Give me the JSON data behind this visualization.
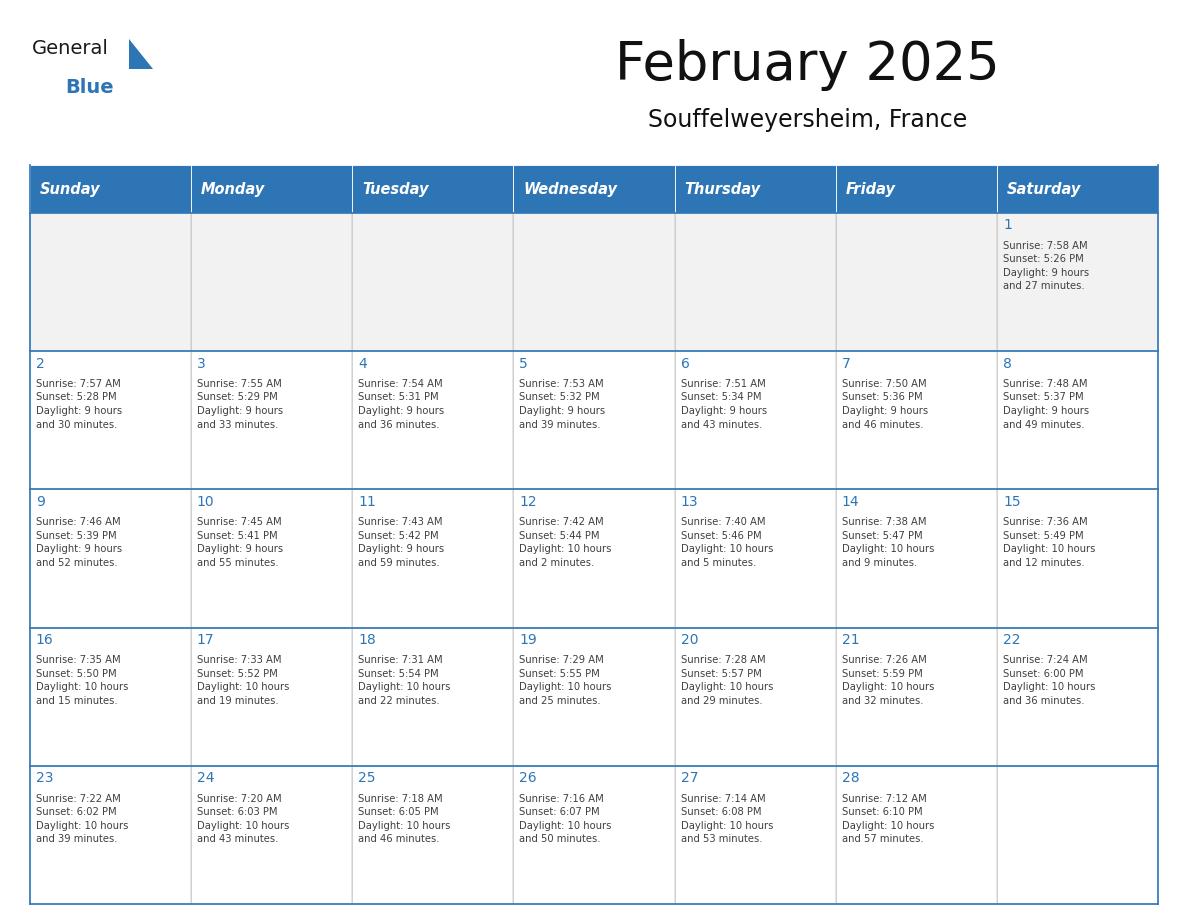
{
  "title": "February 2025",
  "subtitle": "Souffelweyersheim, France",
  "header_bg": "#2E75B6",
  "header_text_color": "#FFFFFF",
  "cell_bg_light": "#F2F2F2",
  "cell_bg_white": "#FFFFFF",
  "cell_border_color": "#2E75B6",
  "day_number_color": "#2E75B6",
  "cell_text_color": "#404040",
  "days_of_week": [
    "Sunday",
    "Monday",
    "Tuesday",
    "Wednesday",
    "Thursday",
    "Friday",
    "Saturday"
  ],
  "weeks": [
    [
      {
        "day": "",
        "info": ""
      },
      {
        "day": "",
        "info": ""
      },
      {
        "day": "",
        "info": ""
      },
      {
        "day": "",
        "info": ""
      },
      {
        "day": "",
        "info": ""
      },
      {
        "day": "",
        "info": ""
      },
      {
        "day": "1",
        "info": "Sunrise: 7:58 AM\nSunset: 5:26 PM\nDaylight: 9 hours\nand 27 minutes."
      }
    ],
    [
      {
        "day": "2",
        "info": "Sunrise: 7:57 AM\nSunset: 5:28 PM\nDaylight: 9 hours\nand 30 minutes."
      },
      {
        "day": "3",
        "info": "Sunrise: 7:55 AM\nSunset: 5:29 PM\nDaylight: 9 hours\nand 33 minutes."
      },
      {
        "day": "4",
        "info": "Sunrise: 7:54 AM\nSunset: 5:31 PM\nDaylight: 9 hours\nand 36 minutes."
      },
      {
        "day": "5",
        "info": "Sunrise: 7:53 AM\nSunset: 5:32 PM\nDaylight: 9 hours\nand 39 minutes."
      },
      {
        "day": "6",
        "info": "Sunrise: 7:51 AM\nSunset: 5:34 PM\nDaylight: 9 hours\nand 43 minutes."
      },
      {
        "day": "7",
        "info": "Sunrise: 7:50 AM\nSunset: 5:36 PM\nDaylight: 9 hours\nand 46 minutes."
      },
      {
        "day": "8",
        "info": "Sunrise: 7:48 AM\nSunset: 5:37 PM\nDaylight: 9 hours\nand 49 minutes."
      }
    ],
    [
      {
        "day": "9",
        "info": "Sunrise: 7:46 AM\nSunset: 5:39 PM\nDaylight: 9 hours\nand 52 minutes."
      },
      {
        "day": "10",
        "info": "Sunrise: 7:45 AM\nSunset: 5:41 PM\nDaylight: 9 hours\nand 55 minutes."
      },
      {
        "day": "11",
        "info": "Sunrise: 7:43 AM\nSunset: 5:42 PM\nDaylight: 9 hours\nand 59 minutes."
      },
      {
        "day": "12",
        "info": "Sunrise: 7:42 AM\nSunset: 5:44 PM\nDaylight: 10 hours\nand 2 minutes."
      },
      {
        "day": "13",
        "info": "Sunrise: 7:40 AM\nSunset: 5:46 PM\nDaylight: 10 hours\nand 5 minutes."
      },
      {
        "day": "14",
        "info": "Sunrise: 7:38 AM\nSunset: 5:47 PM\nDaylight: 10 hours\nand 9 minutes."
      },
      {
        "day": "15",
        "info": "Sunrise: 7:36 AM\nSunset: 5:49 PM\nDaylight: 10 hours\nand 12 minutes."
      }
    ],
    [
      {
        "day": "16",
        "info": "Sunrise: 7:35 AM\nSunset: 5:50 PM\nDaylight: 10 hours\nand 15 minutes."
      },
      {
        "day": "17",
        "info": "Sunrise: 7:33 AM\nSunset: 5:52 PM\nDaylight: 10 hours\nand 19 minutes."
      },
      {
        "day": "18",
        "info": "Sunrise: 7:31 AM\nSunset: 5:54 PM\nDaylight: 10 hours\nand 22 minutes."
      },
      {
        "day": "19",
        "info": "Sunrise: 7:29 AM\nSunset: 5:55 PM\nDaylight: 10 hours\nand 25 minutes."
      },
      {
        "day": "20",
        "info": "Sunrise: 7:28 AM\nSunset: 5:57 PM\nDaylight: 10 hours\nand 29 minutes."
      },
      {
        "day": "21",
        "info": "Sunrise: 7:26 AM\nSunset: 5:59 PM\nDaylight: 10 hours\nand 32 minutes."
      },
      {
        "day": "22",
        "info": "Sunrise: 7:24 AM\nSunset: 6:00 PM\nDaylight: 10 hours\nand 36 minutes."
      }
    ],
    [
      {
        "day": "23",
        "info": "Sunrise: 7:22 AM\nSunset: 6:02 PM\nDaylight: 10 hours\nand 39 minutes."
      },
      {
        "day": "24",
        "info": "Sunrise: 7:20 AM\nSunset: 6:03 PM\nDaylight: 10 hours\nand 43 minutes."
      },
      {
        "day": "25",
        "info": "Sunrise: 7:18 AM\nSunset: 6:05 PM\nDaylight: 10 hours\nand 46 minutes."
      },
      {
        "day": "26",
        "info": "Sunrise: 7:16 AM\nSunset: 6:07 PM\nDaylight: 10 hours\nand 50 minutes."
      },
      {
        "day": "27",
        "info": "Sunrise: 7:14 AM\nSunset: 6:08 PM\nDaylight: 10 hours\nand 53 minutes."
      },
      {
        "day": "28",
        "info": "Sunrise: 7:12 AM\nSunset: 6:10 PM\nDaylight: 10 hours\nand 57 minutes."
      },
      {
        "day": "",
        "info": ""
      }
    ]
  ],
  "logo_color_general": "#1a1a1a",
  "logo_color_blue": "#2E75B6",
  "logo_triangle_color": "#2E75B6",
  "fig_width": 11.88,
  "fig_height": 9.18,
  "dpi": 100
}
